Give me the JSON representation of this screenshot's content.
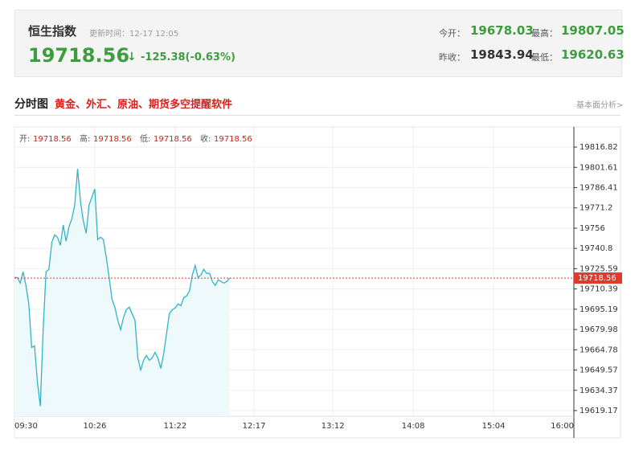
{
  "header": {
    "title": "恒生指数",
    "update": "更新时间：12-17 12:05",
    "price": "19718.56",
    "arrow": "↓",
    "change": "-125.38(-0.63%)",
    "open_label": "今开：",
    "open": "19678.03",
    "high_label": "最高：",
    "high": "19807.05",
    "prev_label": "昨收：",
    "prev": "19843.94",
    "low_label": "最低：",
    "low": "19620.63"
  },
  "section": {
    "title": "分时图",
    "ad": "黄金、外汇、原油、期货多空提醒软件",
    "link": "基本面分析>"
  },
  "chart_data": {
    "type": "line",
    "info": [
      {
        "label": "开:",
        "value": "19718.56"
      },
      {
        "label": "高:",
        "value": "19718.56"
      },
      {
        "label": "低:",
        "value": "19718.56"
      },
      {
        "label": "收:",
        "value": "19718.56"
      }
    ],
    "x": [
      0,
      2,
      4,
      6,
      8,
      10,
      12,
      14,
      16,
      18,
      20,
      22,
      24,
      26,
      28,
      30,
      32,
      34,
      36,
      38,
      40,
      42,
      44,
      46,
      48,
      50,
      52,
      54,
      56,
      58,
      60,
      62,
      64,
      66,
      68,
      70,
      72,
      74,
      76,
      78,
      80,
      82,
      84,
      86,
      88,
      90,
      92,
      94,
      96,
      98,
      100,
      102,
      104,
      106,
      108,
      110,
      112,
      114,
      116,
      118,
      120,
      122,
      124,
      126,
      128,
      130,
      132,
      134,
      136,
      138,
      140,
      142,
      144,
      146,
      148,
      150
    ],
    "series": [
      {
        "color": "#2fb5c4",
        "values": [
          19719.0,
          19719.0,
          19714.8,
          19723.3,
          19713.0,
          19699.1,
          19666.5,
          19667.7,
          19640.6,
          19622.5,
          19679.8,
          19723.3,
          19725.1,
          19745.0,
          19751.0,
          19749.2,
          19743.2,
          19758.3,
          19746.2,
          19757.1,
          19763.1,
          19773.3,
          19800.5,
          19776.4,
          19761.3,
          19752.2,
          19773.3,
          19779.4,
          19785.4,
          19747.4,
          19749.2,
          19747.4,
          19734.1,
          19719.0,
          19702.7,
          19696.7,
          19687.0,
          19679.8,
          19688.9,
          19694.9,
          19696.7,
          19691.9,
          19687.0,
          19658.7,
          19649.6,
          19656.9,
          19660.5,
          19656.9,
          19658.7,
          19662.9,
          19658.7,
          19650.8,
          19661.7,
          19676.8,
          19691.9,
          19694.9,
          19696.1,
          19699.1,
          19697.9,
          19703.9,
          19705.2,
          19708.8,
          19720.9,
          19728.1,
          19719.0,
          19720.9,
          19725.1,
          19722.1,
          19722.1,
          19716.0,
          19713.0,
          19717.2,
          19716.0,
          19714.8,
          19716.0,
          19718.56
        ]
      }
    ],
    "current": 19718.56,
    "current_color": "#e03a2c",
    "area_color": "#eef9fb",
    "xlim": [
      0,
      390
    ],
    "xticks": [
      {
        "value": 0,
        "label": "09:30"
      },
      {
        "value": 56,
        "label": "10:26"
      },
      {
        "value": 112,
        "label": "11:22"
      },
      {
        "value": 167,
        "label": "12:17"
      },
      {
        "value": 222,
        "label": "13:12"
      },
      {
        "value": 278,
        "label": "14:08"
      },
      {
        "value": 334,
        "label": "15:04"
      },
      {
        "value": 390,
        "label": "16:00"
      }
    ],
    "ylim": [
      19614.94,
      19831.91
    ],
    "yticks": [
      19816.82,
      19801.61,
      19786.41,
      19771.2,
      19756.0,
      19740.8,
      19725.59,
      19710.39,
      19695.19,
      19679.98,
      19664.78,
      19649.57,
      19634.37,
      19619.17
    ],
    "grid": true
  }
}
